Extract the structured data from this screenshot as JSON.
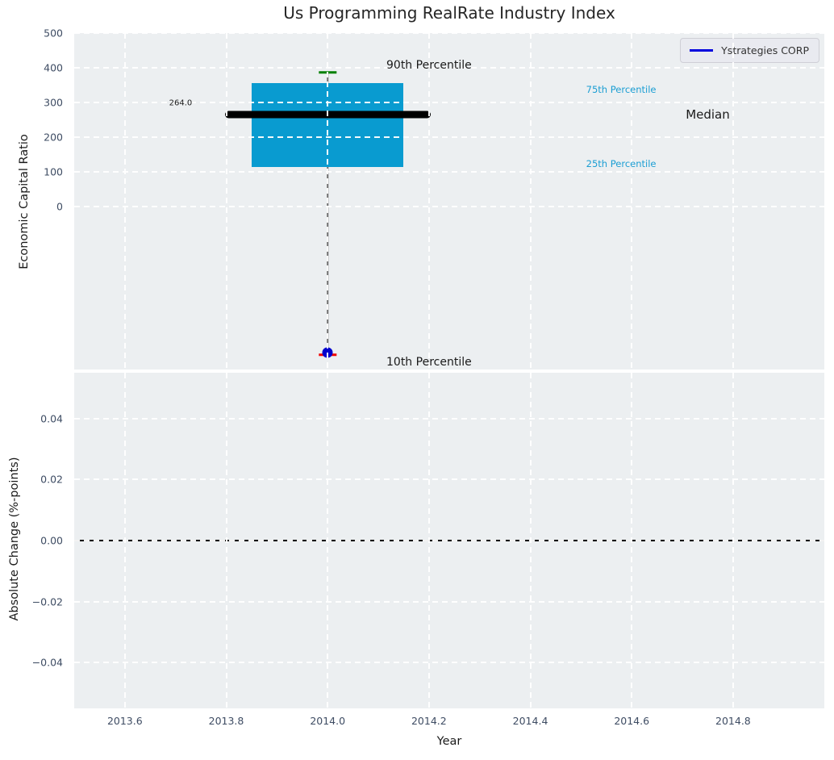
{
  "figure": {
    "title": "Us Programming RealRate Industry Index",
    "xlabel": "Year"
  },
  "legend": {
    "label": "Ystrategies CORP",
    "line_color": "#0000dd"
  },
  "colors": {
    "axes_background": "#eceff1",
    "box_fill": "#099bd0",
    "median_line": "#000000",
    "whisker": "#6e6e6e",
    "cap_top": "#008000",
    "cap_bottom": "#ee0000",
    "marker": "#0000cd",
    "tick_label": "#3e4c63",
    "dark_text": "#1a1a1a",
    "cyan_text": "#1b9ed3",
    "zero_line": "#000000"
  },
  "chart_data": [
    {
      "type": "boxplot",
      "title": "Us Programming RealRate Industry Index",
      "ylabel": "Economic Capital Ratio",
      "xlabel": "Year",
      "xlim": [
        2013.5,
        2014.98
      ],
      "ylim": [
        -470,
        500
      ],
      "xticks": [
        2013.6,
        2013.8,
        2014.0,
        2014.2,
        2014.4,
        2014.6,
        2014.8
      ],
      "yticks": [
        500,
        400,
        300,
        200,
        100,
        0
      ],
      "ytick_labels": [
        "500",
        "400",
        "300",
        "200",
        "100",
        "0"
      ],
      "grid": "white-dashed",
      "legend_position": "upper-right",
      "series": [
        {
          "name": "Ystrategies CORP",
          "year": 2014.0,
          "p10": -427,
          "p25": 114,
          "median": 264.0,
          "p75": 355,
          "p90": 387,
          "company_marker_value": -421,
          "box_halfwidth": 0.15,
          "median_halfwidth": 0.203,
          "cap_halfwidth": 0.017
        }
      ],
      "annotations": [
        {
          "text": "90th Percentile",
          "x": 2014.2,
          "y": 407,
          "color": "dark",
          "size": 14,
          "anchor": "center"
        },
        {
          "text": "75th Percentile",
          "x": 2014.51,
          "y": 337,
          "color": "cyan",
          "size": 11.5,
          "anchor": "left"
        },
        {
          "text": "264.0",
          "x": 2013.71,
          "y": 298,
          "color": "dark",
          "size": 10,
          "anchor": "center"
        },
        {
          "text": "Median",
          "x": 2014.75,
          "y": 264,
          "color": "dark",
          "size": 15,
          "anchor": "center"
        },
        {
          "text": "25th Percentile",
          "x": 2014.51,
          "y": 124,
          "color": "cyan",
          "size": 11.5,
          "anchor": "left"
        },
        {
          "text": "10th Percentile",
          "x": 2014.2,
          "y": -449,
          "color": "dark",
          "size": 14,
          "anchor": "center"
        }
      ]
    },
    {
      "type": "line",
      "ylabel": "Absolute Change (%-points)",
      "xlabel": "Year",
      "xlim": [
        2013.5,
        2014.98
      ],
      "ylim": [
        -0.055,
        0.055
      ],
      "xticks": [
        2013.6,
        2013.8,
        2014.0,
        2014.2,
        2014.4,
        2014.6,
        2014.8
      ],
      "xtick_labels": [
        "2013.6",
        "2013.8",
        "2014.0",
        "2014.2",
        "2014.4",
        "2014.6",
        "2014.8"
      ],
      "yticks": [
        0.04,
        0.02,
        0.0,
        -0.02,
        -0.04
      ],
      "ytick_labels": [
        "0.04",
        "0.02",
        "0.00",
        "−0.02",
        "−0.04"
      ],
      "grid": "white-dashed",
      "zero_line_y": 0.0,
      "series": []
    }
  ]
}
